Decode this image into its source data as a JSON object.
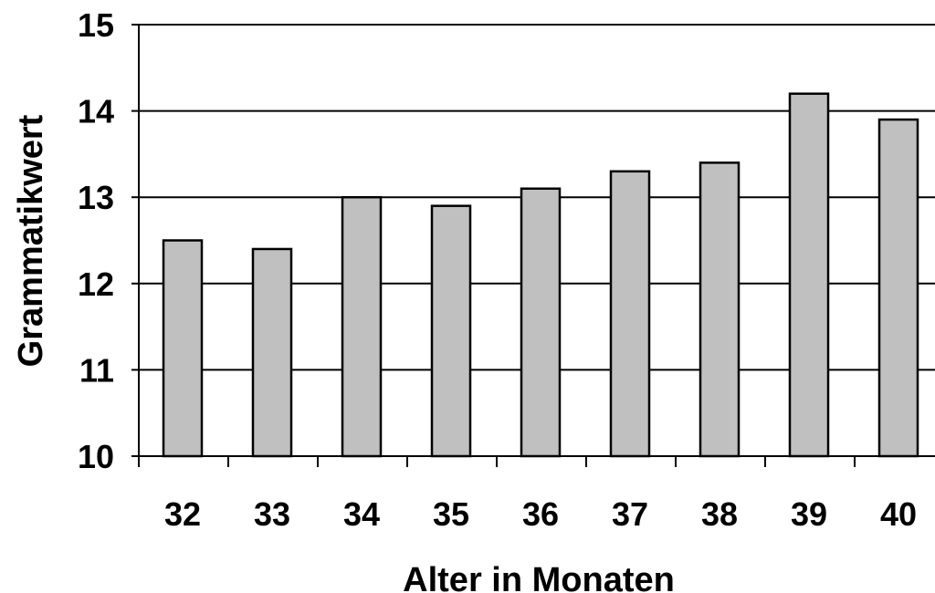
{
  "chart_data": {
    "type": "bar",
    "title": "",
    "xlabel": "Alter in Monaten",
    "ylabel": "Grammatikwert",
    "categories": [
      "32",
      "33",
      "34",
      "35",
      "36",
      "37",
      "38",
      "39",
      "40"
    ],
    "values": [
      12.5,
      12.4,
      13.0,
      12.9,
      13.1,
      13.3,
      13.4,
      14.2,
      13.9
    ],
    "ylim": [
      10,
      15
    ],
    "yticks": [
      10,
      11,
      12,
      13,
      14,
      15
    ],
    "grid": true,
    "legend": "none",
    "bar_color": "#c0c0c0",
    "bar_edge_color": "#000000"
  }
}
